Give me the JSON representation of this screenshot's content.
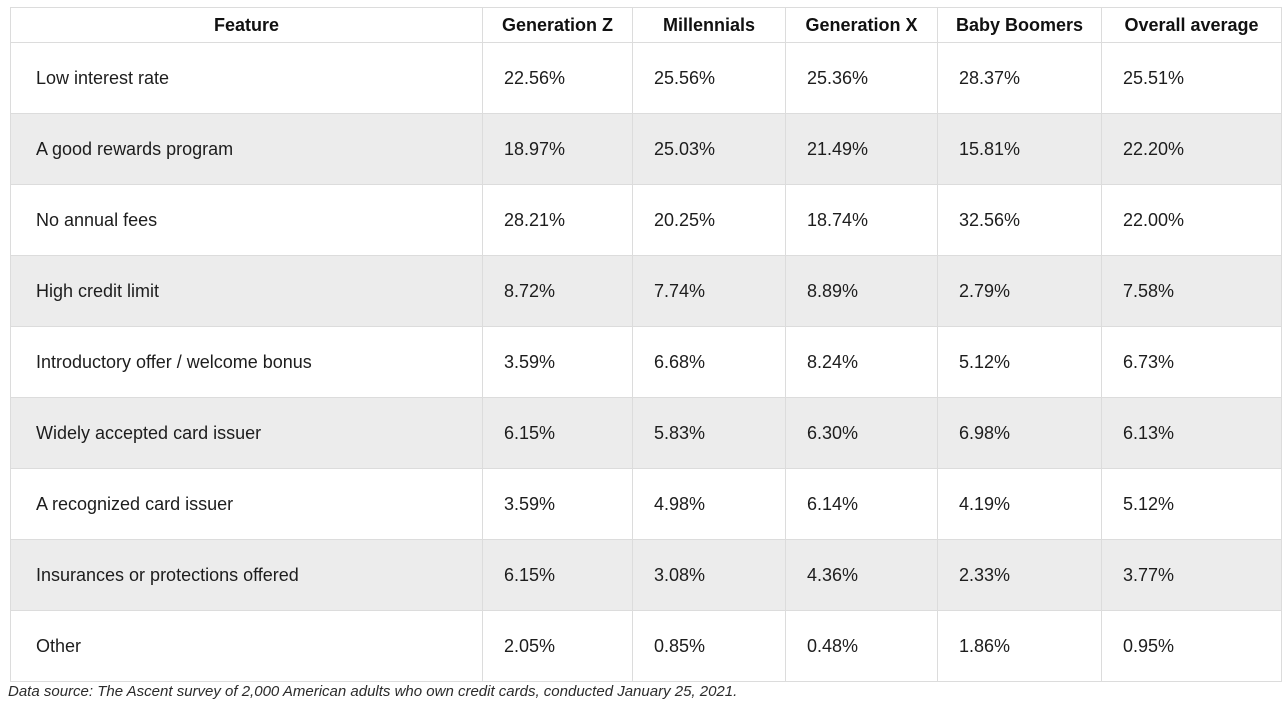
{
  "chart_data": {
    "type": "table",
    "columns": [
      "Feature",
      "Generation Z",
      "Millennials",
      "Generation X",
      "Baby Boomers",
      "Overall average"
    ],
    "rows": [
      {
        "feature": "Low interest rate",
        "values": [
          "22.56%",
          "25.56%",
          "25.36%",
          "28.37%",
          "25.51%"
        ]
      },
      {
        "feature": "A good rewards program",
        "values": [
          "18.97%",
          "25.03%",
          "21.49%",
          "15.81%",
          "22.20%"
        ]
      },
      {
        "feature": "No annual fees",
        "values": [
          "28.21%",
          "20.25%",
          "18.74%",
          "32.56%",
          "22.00%"
        ]
      },
      {
        "feature": "High credit limit",
        "values": [
          "8.72%",
          "7.74%",
          "8.89%",
          "2.79%",
          "7.58%"
        ]
      },
      {
        "feature": "Introductory offer / welcome bonus",
        "values": [
          "3.59%",
          "6.68%",
          "8.24%",
          "5.12%",
          "6.73%"
        ]
      },
      {
        "feature": "Widely accepted card issuer",
        "values": [
          "6.15%",
          "5.83%",
          "6.30%",
          "6.98%",
          "6.13%"
        ]
      },
      {
        "feature": "A recognized card issuer",
        "values": [
          "3.59%",
          "4.98%",
          "6.14%",
          "4.19%",
          "5.12%"
        ]
      },
      {
        "feature": "Insurances or protections offered",
        "values": [
          "6.15%",
          "3.08%",
          "4.36%",
          "2.33%",
          "3.77%"
        ]
      },
      {
        "feature": "Other",
        "values": [
          "2.05%",
          "0.85%",
          "0.48%",
          "1.86%",
          "0.95%"
        ]
      }
    ],
    "source_note": "Data source: The Ascent survey of 2,000 American adults who own credit cards, conducted January 25, 2021.",
    "layout": {
      "row_shading": "alternate-even-rows",
      "header_align": "center",
      "cell_align": "left"
    },
    "colors": {
      "row_shade": "#ececec",
      "border": "#dcdcdc",
      "text": "#1d1d1d"
    }
  }
}
